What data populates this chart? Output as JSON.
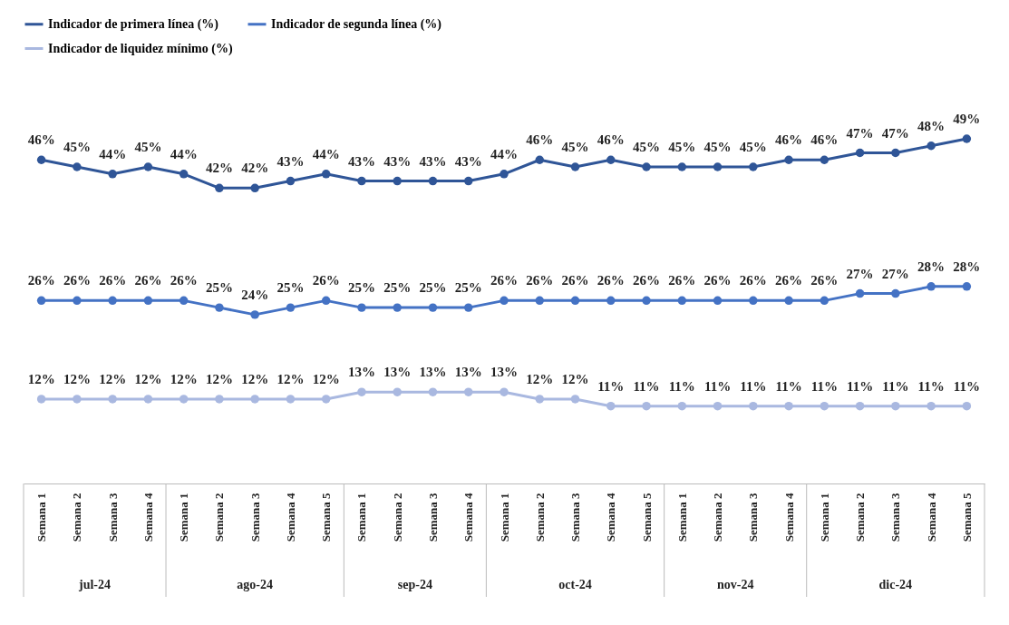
{
  "chart_data": {
    "type": "line",
    "categories": [
      "Semana 1",
      "Semana 2",
      "Semana 3",
      "Semana 4",
      "Semana 1",
      "Semana 2",
      "Semana 3",
      "Semana 4",
      "Semana 5",
      "Semana 1",
      "Semana 2",
      "Semana 3",
      "Semana 4",
      "Semana 1",
      "Semana 2",
      "Semana 3",
      "Semana 4",
      "Semana 5",
      "Semana 1",
      "Semana 2",
      "Semana 3",
      "Semana 4",
      "Semana 1",
      "Semana 2",
      "Semana 3",
      "Semana 4",
      "Semana 5"
    ],
    "annotations": [
      "jul-24",
      "ago-24",
      "sep-24",
      "oct-24",
      "nov-24",
      "dic-24"
    ],
    "series": [
      {
        "name": "Indicador de primera línea (%)",
        "color": "#2f5597",
        "values": [
          46,
          45,
          44,
          45,
          44,
          42,
          42,
          43,
          44,
          43,
          43,
          43,
          43,
          44,
          46,
          45,
          46,
          45,
          45,
          45,
          45,
          46,
          46,
          47,
          47,
          48,
          49
        ],
        "value_labels": [
          "46%",
          "45%",
          "44%",
          "45%",
          "44%",
          "42%",
          "42%",
          "43%",
          "44%",
          "43%",
          "43%",
          "43%",
          "43%",
          "44%",
          "46%",
          "45%",
          "46%",
          "45%",
          "45%",
          "45%",
          "45%",
          "46%",
          "46%",
          "47%",
          "47%",
          "48%",
          "49%"
        ]
      },
      {
        "name": "Indicador de segunda línea (%)",
        "color": "#4472c4",
        "values": [
          26,
          26,
          26,
          26,
          26,
          25,
          24,
          25,
          26,
          25,
          25,
          25,
          25,
          26,
          26,
          26,
          26,
          26,
          26,
          26,
          26,
          26,
          26,
          27,
          27,
          28,
          28
        ],
        "value_labels": [
          "26%",
          "26%",
          "26%",
          "26%",
          "26%",
          "25%",
          "24%",
          "25%",
          "26%",
          "25%",
          "25%",
          "25%",
          "25%",
          "26%",
          "26%",
          "26%",
          "26%",
          "26%",
          "26%",
          "26%",
          "26%",
          "26%",
          "26%",
          "27%",
          "27%",
          "28%",
          "28%"
        ]
      },
      {
        "name": "Indicador de liquidez mínimo (%)",
        "color": "#a9b8e0",
        "values": [
          12,
          12,
          12,
          12,
          12,
          12,
          12,
          12,
          12,
          13,
          13,
          13,
          13,
          13,
          12,
          12,
          11,
          11,
          11,
          11,
          11,
          11,
          11,
          11,
          11,
          11,
          11
        ],
        "value_labels": [
          "12%",
          "12%",
          "12%",
          "12%",
          "12%",
          "12%",
          "12%",
          "12%",
          "12%",
          "13%",
          "13%",
          "13%",
          "13%",
          "13%",
          "12%",
          "12%",
          "11%",
          "11%",
          "11%",
          "11%",
          "11%",
          "11%",
          "11%",
          "11%",
          "11%",
          "11%",
          "11%"
        ]
      }
    ],
    "legend": "top",
    "marker": "circle",
    "grid": false,
    "tick_labels": "x"
  }
}
